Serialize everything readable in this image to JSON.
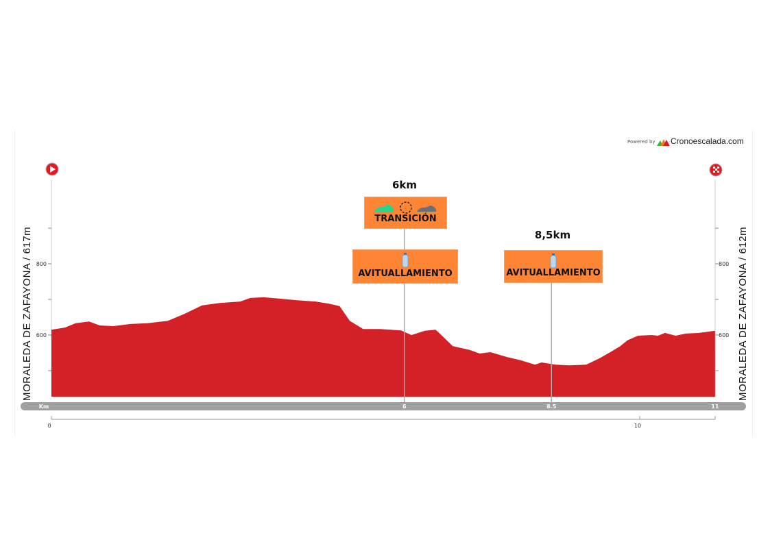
{
  "branding": {
    "powered_by": "Powered by",
    "name": "Cronoescalada.com"
  },
  "start_label": "MORALEDA DE ZAFAYONA / 617m",
  "finish_label": "MORALEDA DE ZAFAYONA / 612m",
  "icons": {
    "start": "play-flag-icon",
    "finish": "checkered-flag-icon",
    "aid": "water-bottle-icon",
    "transition": "shoes-transition-icon"
  },
  "colors": {
    "profile": "#d42027",
    "marker_box": "#fd8534",
    "km_bar": "#a0a0a0"
  },
  "markers": [
    {
      "km": 6,
      "km_label": "6km",
      "boxes": [
        {
          "label": "TRANSICIÓN",
          "icon": "shoes-transition-icon"
        },
        {
          "label": "AVITUALLAMIENTO",
          "icon": "water-bottle-icon"
        }
      ]
    },
    {
      "km": 8.5,
      "km_label": "8,5km",
      "boxes": [
        {
          "label": "AVITUALLAMIENTO",
          "icon": "water-bottle-icon"
        }
      ]
    }
  ],
  "chart_data": {
    "type": "area",
    "xlabel": "Km",
    "x_bar_ticks": [
      {
        "km": 6,
        "label": "6"
      },
      {
        "km": 8.5,
        "label": "8.5"
      },
      {
        "km": 11.28,
        "label": "11"
      }
    ],
    "x_scale_ticks": [
      {
        "km": 0,
        "label": "0"
      },
      {
        "km": 10,
        "label": "10"
      }
    ],
    "y_ticks": [
      {
        "v": 800,
        "label": "800"
      },
      {
        "v": 600,
        "label": "600"
      }
    ],
    "y_minor_ticks": [
      900,
      700,
      500
    ],
    "xlim": [
      0,
      11.28
    ],
    "ylim": [
      427,
      1000
    ],
    "points": [
      [
        0,
        615
      ],
      [
        0.23,
        621
      ],
      [
        0.41,
        633
      ],
      [
        0.64,
        638
      ],
      [
        0.82,
        627
      ],
      [
        1.05,
        625
      ],
      [
        1.34,
        631
      ],
      [
        1.63,
        633
      ],
      [
        1.98,
        640
      ],
      [
        2.27,
        660
      ],
      [
        2.56,
        683
      ],
      [
        2.86,
        690
      ],
      [
        3.21,
        694
      ],
      [
        3.38,
        704
      ],
      [
        3.61,
        706
      ],
      [
        3.9,
        702
      ],
      [
        4.14,
        698
      ],
      [
        4.49,
        694
      ],
      [
        4.72,
        688
      ],
      [
        4.9,
        681
      ],
      [
        5.07,
        640
      ],
      [
        5.3,
        617
      ],
      [
        5.59,
        617
      ],
      [
        5.94,
        613
      ],
      [
        6.12,
        600
      ],
      [
        6.35,
        612
      ],
      [
        6.53,
        615
      ],
      [
        6.64,
        598
      ],
      [
        6.82,
        569
      ],
      [
        7.11,
        558
      ],
      [
        7.28,
        548
      ],
      [
        7.46,
        552
      ],
      [
        7.75,
        538
      ],
      [
        7.98,
        529
      ],
      [
        8.22,
        517
      ],
      [
        8.33,
        523
      ],
      [
        8.57,
        517
      ],
      [
        8.8,
        515
      ],
      [
        9.09,
        517
      ],
      [
        9.32,
        535
      ],
      [
        9.5,
        552
      ],
      [
        9.67,
        569
      ],
      [
        9.79,
        585
      ],
      [
        9.97,
        598
      ],
      [
        10.2,
        600
      ],
      [
        10.31,
        598
      ],
      [
        10.43,
        606
      ],
      [
        10.61,
        598
      ],
      [
        10.78,
        604
      ],
      [
        11.01,
        606
      ],
      [
        11.28,
        612
      ]
    ]
  }
}
